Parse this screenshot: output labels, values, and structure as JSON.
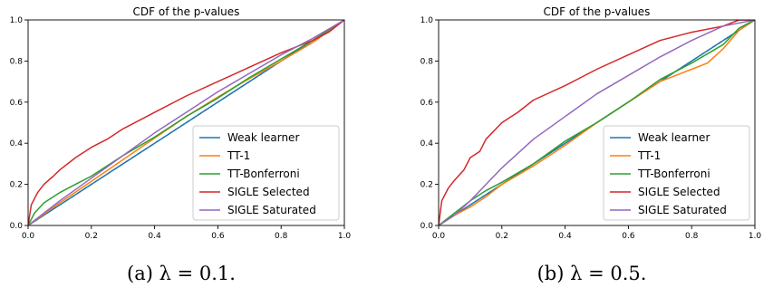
{
  "chart_data": [
    {
      "type": "line",
      "title": "CDF of the p-values",
      "caption": "(a) λ = 0.1.",
      "xlim": [
        0,
        1
      ],
      "ylim": [
        0,
        1
      ],
      "xticks": [
        "0.0",
        "0.2",
        "0.4",
        "0.6",
        "0.8",
        "1.0"
      ],
      "yticks": [
        "0.0",
        "0.2",
        "0.4",
        "0.6",
        "0.8",
        "1.0"
      ],
      "legend_position": "lower-right",
      "series": [
        {
          "name": "Weak learner",
          "color": "#1f77b4",
          "x": [
            0,
            0.2,
            0.4,
            0.6,
            0.8,
            1.0
          ],
          "y": [
            0,
            0.2,
            0.4,
            0.6,
            0.8,
            1.0
          ]
        },
        {
          "name": "TT-1",
          "color": "#ff7f0e",
          "x": [
            0,
            0.1,
            0.2,
            0.3,
            0.4,
            0.5,
            0.6,
            0.7,
            0.8,
            0.9,
            1.0
          ],
          "y": [
            0,
            0.11,
            0.215,
            0.32,
            0.425,
            0.53,
            0.625,
            0.715,
            0.8,
            0.89,
            1.0
          ]
        },
        {
          "name": "TT-Bonferroni",
          "color": "#2ca02c",
          "x": [
            0,
            0.02,
            0.05,
            0.1,
            0.15,
            0.2,
            0.3,
            0.4,
            0.5,
            0.6,
            0.7,
            0.8,
            0.9,
            1.0
          ],
          "y": [
            0,
            0.06,
            0.11,
            0.16,
            0.2,
            0.24,
            0.34,
            0.43,
            0.53,
            0.62,
            0.72,
            0.81,
            0.9,
            1.0
          ]
        },
        {
          "name": "SIGLE Selected",
          "color": "#d62728",
          "x": [
            0,
            0.01,
            0.03,
            0.05,
            0.08,
            0.1,
            0.15,
            0.2,
            0.25,
            0.3,
            0.4,
            0.5,
            0.6,
            0.7,
            0.8,
            0.9,
            0.95,
            1.0
          ],
          "y": [
            0,
            0.1,
            0.16,
            0.2,
            0.24,
            0.27,
            0.33,
            0.38,
            0.42,
            0.47,
            0.55,
            0.63,
            0.7,
            0.77,
            0.84,
            0.9,
            0.94,
            1.0
          ]
        },
        {
          "name": "SIGLE Saturated",
          "color": "#9467bd",
          "x": [
            0,
            0.05,
            0.1,
            0.2,
            0.3,
            0.4,
            0.5,
            0.6,
            0.7,
            0.8,
            0.9,
            1.0
          ],
          "y": [
            0,
            0.06,
            0.12,
            0.23,
            0.34,
            0.45,
            0.55,
            0.65,
            0.74,
            0.83,
            0.91,
            1.0
          ]
        }
      ]
    },
    {
      "type": "line",
      "title": "CDF of the p-values",
      "caption": "(b) λ = 0.5.",
      "xlim": [
        0,
        1
      ],
      "ylim": [
        0,
        1
      ],
      "xticks": [
        "0.0",
        "0.2",
        "0.4",
        "0.6",
        "0.8",
        "1.0"
      ],
      "yticks": [
        "0.0",
        "0.2",
        "0.4",
        "0.6",
        "0.8",
        "1.0"
      ],
      "legend_position": "lower-right",
      "series": [
        {
          "name": "Weak learner",
          "color": "#1f77b4",
          "x": [
            0,
            0.2,
            0.4,
            0.6,
            0.8,
            1.0
          ],
          "y": [
            0,
            0.2,
            0.4,
            0.6,
            0.8,
            1.0
          ]
        },
        {
          "name": "TT-1",
          "color": "#ff7f0e",
          "x": [
            0,
            0.05,
            0.1,
            0.15,
            0.2,
            0.3,
            0.4,
            0.5,
            0.6,
            0.7,
            0.8,
            0.85,
            0.9,
            0.95,
            1.0
          ],
          "y": [
            0,
            0.05,
            0.09,
            0.14,
            0.2,
            0.29,
            0.39,
            0.5,
            0.6,
            0.7,
            0.76,
            0.79,
            0.86,
            0.95,
            1.0
          ]
        },
        {
          "name": "TT-Bonferroni",
          "color": "#2ca02c",
          "x": [
            0,
            0.05,
            0.1,
            0.15,
            0.2,
            0.3,
            0.4,
            0.5,
            0.6,
            0.7,
            0.8,
            0.9,
            0.95,
            1.0
          ],
          "y": [
            0,
            0.06,
            0.12,
            0.17,
            0.21,
            0.3,
            0.41,
            0.5,
            0.6,
            0.71,
            0.79,
            0.88,
            0.96,
            1.0
          ]
        },
        {
          "name": "SIGLE Selected",
          "color": "#d62728",
          "x": [
            0,
            0.01,
            0.03,
            0.05,
            0.08,
            0.1,
            0.13,
            0.15,
            0.2,
            0.25,
            0.3,
            0.4,
            0.5,
            0.6,
            0.7,
            0.8,
            0.9,
            0.95,
            1.0
          ],
          "y": [
            0,
            0.12,
            0.18,
            0.22,
            0.27,
            0.33,
            0.36,
            0.42,
            0.5,
            0.55,
            0.61,
            0.68,
            0.76,
            0.83,
            0.9,
            0.94,
            0.97,
            1.0,
            1.0
          ]
        },
        {
          "name": "SIGLE Saturated",
          "color": "#9467bd",
          "x": [
            0,
            0.05,
            0.1,
            0.15,
            0.2,
            0.25,
            0.3,
            0.4,
            0.5,
            0.6,
            0.7,
            0.8,
            0.9,
            1.0
          ],
          "y": [
            0,
            0.05,
            0.12,
            0.2,
            0.28,
            0.35,
            0.42,
            0.53,
            0.64,
            0.73,
            0.82,
            0.9,
            0.97,
            1.0
          ]
        }
      ]
    }
  ]
}
